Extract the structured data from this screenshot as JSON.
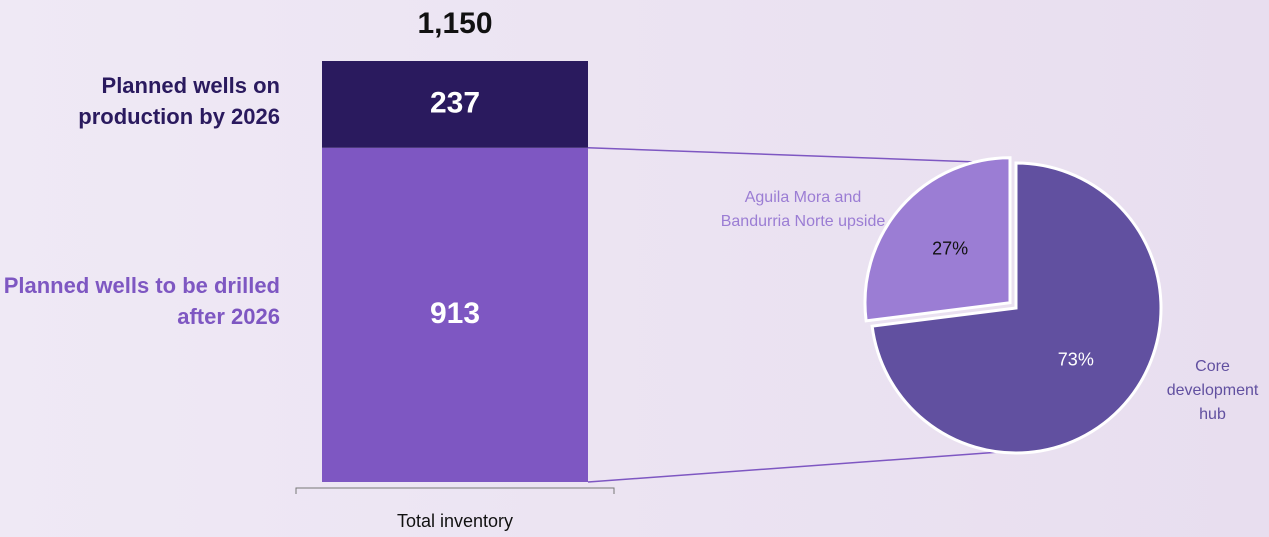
{
  "chart_data": [
    {
      "type": "bar",
      "stacked": true,
      "categories": [
        "Total inventory"
      ],
      "series": [
        {
          "name": "Planned wells to be drilled after 2026",
          "color": "#7e57c2",
          "values": [
            913
          ]
        },
        {
          "name": "Planned wells on production by 2026",
          "color": "#2a1a5e",
          "values": [
            237
          ]
        }
      ],
      "total": {
        "value": 1150,
        "label": "1,150"
      }
    },
    {
      "type": "pie",
      "categories": [
        "Aguila Mora and Bandurria Norte upside",
        "Core development hub"
      ],
      "values": [
        27,
        73
      ],
      "value_labels": [
        "27%",
        "73%"
      ],
      "colors": [
        "#9b7dd4",
        "#6150a0"
      ]
    }
  ]
}
